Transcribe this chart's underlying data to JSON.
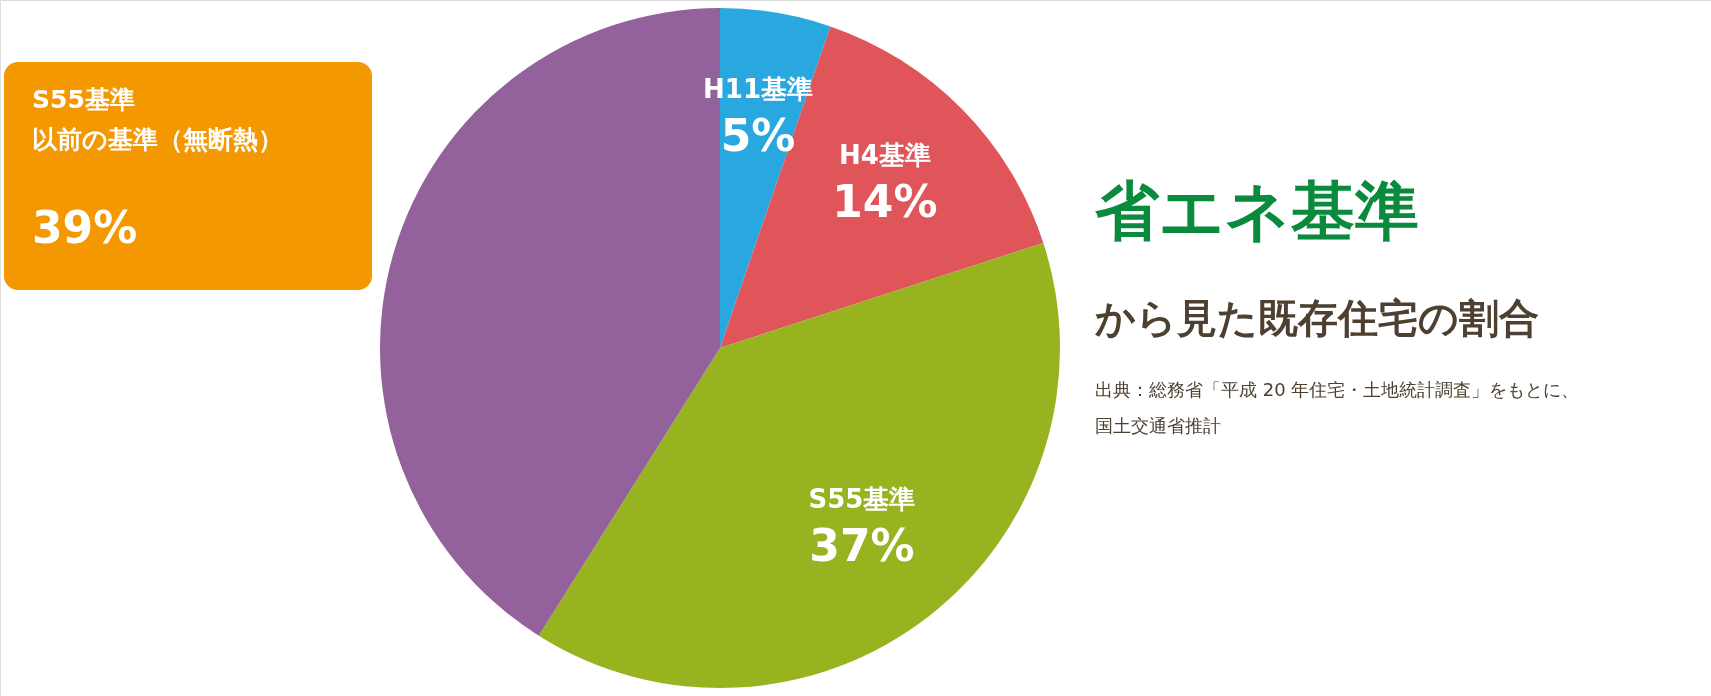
{
  "chart_data": {
    "type": "pie",
    "title": "省エネ基準",
    "subtitle": "から見た既存住宅の割合",
    "annotations": [
      "出典：総務省「平成 20 年住宅・土地統計調査」をもとに、",
      "国土交通省推計"
    ],
    "categories": [
      "H11基準",
      "H4基準",
      "S55基準",
      "S55基準以前の基準（無断熱）"
    ],
    "values": [
      5,
      14,
      37,
      39
    ],
    "value_labels": [
      "5%",
      "14%",
      "37%",
      "39%"
    ],
    "colors": [
      "#29a8e0",
      "#e0555a",
      "#97b31f",
      "#93629c"
    ]
  }
}
